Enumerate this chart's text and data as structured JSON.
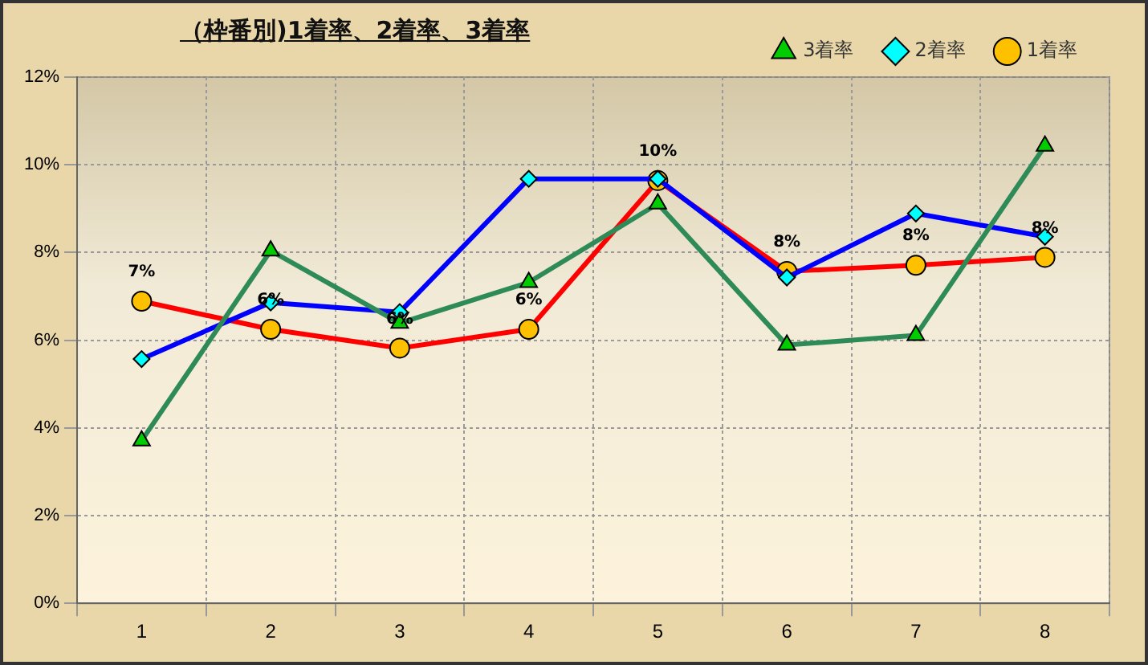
{
  "chart_data": {
    "type": "line",
    "title": "（枠番別)1着率、2着率、3着率",
    "categories": [
      "1",
      "2",
      "3",
      "4",
      "5",
      "6",
      "7",
      "8"
    ],
    "series": [
      {
        "name": "3着率",
        "color": "#2e8b57",
        "marker": "triangle",
        "values": [
          3.71,
          8.04,
          6.39,
          7.32,
          9.11,
          5.89,
          6.11,
          10.43
        ]
      },
      {
        "name": "2着率",
        "color": "#0000ff",
        "marker": "diamond",
        "values": [
          5.57,
          6.86,
          6.64,
          9.68,
          9.68,
          7.43,
          8.89,
          8.36
        ]
      },
      {
        "name": "1着率",
        "color": "#ff0000",
        "marker": "circle",
        "values": [
          6.89,
          6.25,
          5.82,
          6.25,
          9.64,
          7.57,
          7.71,
          7.89
        ],
        "value_labels": [
          "7%",
          "6%",
          "6%",
          "6%",
          "10%",
          "8%",
          "8%",
          "8%"
        ]
      }
    ],
    "ylim": [
      0,
      12
    ],
    "yticks": [
      {
        "value": 0,
        "label": "0%"
      },
      {
        "value": 2,
        "label": "2%"
      },
      {
        "value": 4,
        "label": "4%"
      },
      {
        "value": 6,
        "label": "6%"
      },
      {
        "value": 8,
        "label": "8%"
      },
      {
        "value": 10,
        "label": "10%"
      },
      {
        "value": 12,
        "label": "12%"
      }
    ],
    "grid": true,
    "legend": "top right",
    "line_style": "solid"
  }
}
